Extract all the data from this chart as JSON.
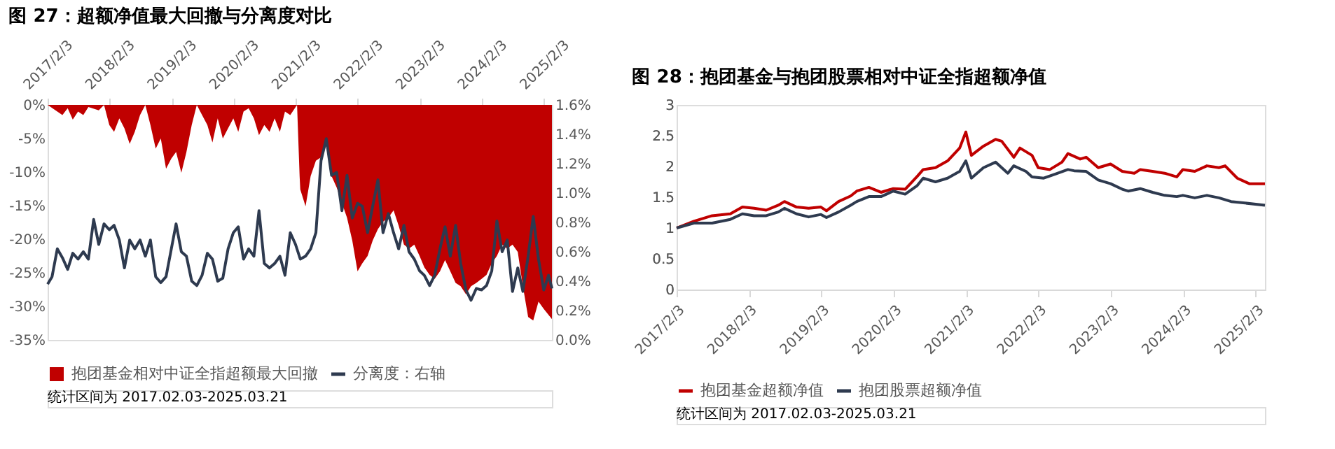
{
  "chart_data": [
    {
      "type": "area",
      "title": "图 27：超额净值最大回撤与分离度对比",
      "xlim": [
        "2017-02-03",
        "2025-03-21"
      ],
      "xticks": [
        {
          "value": "2017-02-03",
          "label": "2017/2/3"
        },
        {
          "value": "2018-02-03",
          "label": "2018/2/3"
        },
        {
          "value": "2019-02-03",
          "label": "2019/2/3"
        },
        {
          "value": "2020-02-03",
          "label": "2020/2/3"
        },
        {
          "value": "2021-02-03",
          "label": "2021/2/3"
        },
        {
          "value": "2022-02-03",
          "label": "2022/2/3"
        },
        {
          "value": "2023-02-03",
          "label": "2023/2/3"
        },
        {
          "value": "2024-02-03",
          "label": "2024/2/3"
        },
        {
          "value": "2025-02-03",
          "label": "2025/2/3"
        }
      ],
      "ylim": [
        -35,
        0
      ],
      "yticks": [
        {
          "value": -35,
          "label": "-35%"
        },
        {
          "value": -30,
          "label": "-30%"
        },
        {
          "value": -25,
          "label": "-25%"
        },
        {
          "value": -20,
          "label": "-20%"
        },
        {
          "value": -15,
          "label": "-15%"
        },
        {
          "value": -10,
          "label": "-10%"
        },
        {
          "value": -5,
          "label": "-5%"
        },
        {
          "value": 0,
          "label": "0%"
        }
      ],
      "y2lim": [
        0,
        1.6
      ],
      "y2ticks": [
        {
          "value": 0,
          "label": "0.0%"
        },
        {
          "value": 0.2,
          "label": "0.2%"
        },
        {
          "value": 0.4,
          "label": "0.4%"
        },
        {
          "value": 0.6,
          "label": "0.6%"
        },
        {
          "value": 0.8,
          "label": "0.8%"
        },
        {
          "value": 1.0,
          "label": "1.0%"
        },
        {
          "value": 1.2,
          "label": "1.2%"
        },
        {
          "value": 1.4,
          "label": "1.4%"
        },
        {
          "value": 1.6,
          "label": "1.6%"
        }
      ],
      "legend": "bottom",
      "series": [
        {
          "name": "抱团基金相对中证全指超额最大回撤",
          "type": "area",
          "color": "#c00000",
          "x": [
            "2017-02-03",
            "2017-04",
            "2017-05",
            "2017-06",
            "2017-07",
            "2017-08",
            "2017-09",
            "2017-10",
            "2017-12",
            "2018-01",
            "2018-02",
            "2018-03",
            "2018-04",
            "2018-05",
            "2018-06",
            "2018-07",
            "2018-08",
            "2018-09",
            "2018-10",
            "2018-11",
            "2018-12",
            "2019-01",
            "2019-02",
            "2019-03",
            "2019-04",
            "2019-05",
            "2019-06",
            "2019-07",
            "2019-08",
            "2019-09",
            "2019-10",
            "2019-11",
            "2019-12",
            "2020-01",
            "2020-02",
            "2020-03",
            "2020-04",
            "2020-05",
            "2020-06",
            "2020-07",
            "2020-08",
            "2020-09",
            "2020-10",
            "2020-11",
            "2020-12",
            "2021-01",
            "2021-02-10",
            "2021-02-25",
            "2021-03",
            "2021-04",
            "2021-05",
            "2021-06",
            "2021-07",
            "2021-08",
            "2021-09",
            "2021-10",
            "2021-11",
            "2021-12",
            "2022-01",
            "2022-02",
            "2022-03",
            "2022-04",
            "2022-05",
            "2022-06",
            "2022-07",
            "2022-08",
            "2022-09",
            "2022-10",
            "2022-11",
            "2022-12",
            "2023-01",
            "2023-02",
            "2023-03",
            "2023-04",
            "2023-05",
            "2023-06",
            "2023-07",
            "2023-08",
            "2023-09",
            "2023-10",
            "2023-11",
            "2023-12",
            "2024-01",
            "2024-02",
            "2024-03",
            "2024-04",
            "2024-05",
            "2024-06",
            "2024-07",
            "2024-08",
            "2024-09",
            "2024-10",
            "2024-11",
            "2024-12",
            "2025-01",
            "2025-02",
            "2025-03-21"
          ],
          "values": [
            0,
            -1,
            -1.5,
            -0.5,
            -2.2,
            -1,
            -1.5,
            -0.3,
            -0.8,
            0,
            -3,
            -4,
            -2,
            -3.5,
            -5.8,
            -4,
            -1.5,
            0,
            -3,
            -6.5,
            -5,
            -9.5,
            -8,
            -7,
            -10.1,
            -7,
            -3,
            0,
            -1.5,
            -3,
            -5.6,
            -2,
            -5,
            -3.5,
            -2,
            -4,
            -1,
            -0.5,
            -2,
            -4.5,
            -3,
            -4,
            -2,
            -4,
            -1,
            -1.5,
            0,
            -10.6,
            -12.6,
            -15.1,
            -10.6,
            -8.3,
            -7.8,
            -6.1,
            -10.6,
            -12.3,
            -14.6,
            -16.8,
            -20.2,
            -24.8,
            -23.6,
            -22.5,
            -20.2,
            -18.5,
            -17.4,
            -16.8,
            -15.7,
            -18.0,
            -20.8,
            -21.4,
            -20.8,
            -22.5,
            -24.2,
            -25.3,
            -25.9,
            -24.8,
            -23.1,
            -24.8,
            -26.5,
            -27.0,
            -28.2,
            -27.0,
            -26.5,
            -25.9,
            -25.3,
            -23.6,
            -22.5,
            -20.8,
            -21.4,
            -20.8,
            -21.9,
            -27.0,
            -31.6,
            -32.1,
            -29.3,
            -30.4,
            -31.9
          ]
        },
        {
          "name": "分离度：右轴",
          "type": "line",
          "axis": "y2",
          "color": "#2e3a4f",
          "x": [
            "2017-02-03",
            "2017-03",
            "2017-04",
            "2017-05",
            "2017-06",
            "2017-07",
            "2017-08",
            "2017-09",
            "2017-10",
            "2017-11",
            "2017-12",
            "2018-01",
            "2018-02",
            "2018-03",
            "2018-04",
            "2018-05",
            "2018-06",
            "2018-07",
            "2018-08",
            "2018-09",
            "2018-10",
            "2018-11",
            "2018-12",
            "2019-01",
            "2019-02",
            "2019-03",
            "2019-04",
            "2019-05",
            "2019-06",
            "2019-07",
            "2019-08",
            "2019-09",
            "2019-10",
            "2019-11",
            "2019-12",
            "2020-01",
            "2020-02",
            "2020-03",
            "2020-04",
            "2020-05",
            "2020-06",
            "2020-07",
            "2020-08",
            "2020-09",
            "2020-10",
            "2020-11",
            "2020-12",
            "2021-01",
            "2021-02",
            "2021-03",
            "2021-04",
            "2021-05",
            "2021-06",
            "2021-07",
            "2021-08",
            "2021-09",
            "2021-10",
            "2021-11",
            "2021-12",
            "2022-01",
            "2022-02",
            "2022-03",
            "2022-04",
            "2022-05",
            "2022-06",
            "2022-07",
            "2022-08",
            "2022-09",
            "2022-10",
            "2022-11",
            "2022-12",
            "2023-01",
            "2023-02",
            "2023-03",
            "2023-04",
            "2023-05",
            "2023-06",
            "2023-07",
            "2023-08",
            "2023-09",
            "2023-10",
            "2023-11",
            "2023-12",
            "2024-01",
            "2024-02",
            "2024-03",
            "2024-04",
            "2024-05",
            "2024-06",
            "2024-07",
            "2024-08",
            "2024-09",
            "2024-10",
            "2024-11",
            "2024-12",
            "2025-01",
            "2025-02",
            "2025-03",
            "2025-03-21"
          ],
          "values": [
            0.38,
            0.43,
            0.62,
            0.56,
            0.48,
            0.59,
            0.55,
            0.6,
            0.55,
            0.82,
            0.65,
            0.79,
            0.75,
            0.78,
            0.68,
            0.49,
            0.68,
            0.62,
            0.68,
            0.57,
            0.68,
            0.43,
            0.39,
            0.43,
            0.62,
            0.79,
            0.6,
            0.57,
            0.4,
            0.37,
            0.44,
            0.59,
            0.55,
            0.4,
            0.42,
            0.62,
            0.73,
            0.77,
            0.55,
            0.62,
            0.57,
            0.88,
            0.52,
            0.49,
            0.52,
            0.57,
            0.44,
            0.73,
            0.65,
            0.55,
            0.57,
            0.62,
            0.73,
            1.22,
            1.37,
            1.12,
            1.14,
            0.88,
            1.12,
            0.83,
            0.93,
            0.91,
            0.73,
            0.91,
            1.09,
            0.73,
            0.86,
            0.73,
            0.62,
            0.78,
            0.6,
            0.55,
            0.47,
            0.44,
            0.37,
            0.44,
            0.62,
            0.77,
            0.57,
            0.78,
            0.52,
            0.34,
            0.27,
            0.35,
            0.34,
            0.37,
            0.47,
            0.81,
            0.6,
            0.68,
            0.33,
            0.49,
            0.33,
            0.57,
            0.84,
            0.55,
            0.34,
            0.44,
            0.35
          ]
        }
      ],
      "annotations": [
        "统计区间为 2017.02.03-2025.03.21"
      ]
    },
    {
      "type": "line",
      "title": "图 28：抱团基金与抱团股票相对中证全指超额净值",
      "xlim": [
        "2017-02-03",
        "2025-03-21"
      ],
      "xticks": [
        {
          "value": "2017-02-03",
          "label": "2017/2/3"
        },
        {
          "value": "2018-02-03",
          "label": "2018/2/3"
        },
        {
          "value": "2019-02-03",
          "label": "2019/2/3"
        },
        {
          "value": "2020-02-03",
          "label": "2020/2/3"
        },
        {
          "value": "2021-02-03",
          "label": "2021/2/3"
        },
        {
          "value": "2022-02-03",
          "label": "2022/2/3"
        },
        {
          "value": "2023-02-03",
          "label": "2023/2/3"
        },
        {
          "value": "2024-02-03",
          "label": "2024/2/3"
        },
        {
          "value": "2025-02-03",
          "label": "2025/2/3"
        }
      ],
      "ylim": [
        0,
        3
      ],
      "yticks": [
        0,
        0.5,
        1,
        1.5,
        2,
        2.5,
        3
      ],
      "legend": "bottom",
      "series": [
        {
          "name": "抱团基金超额净值",
          "color": "#c00000",
          "x": [
            "2017-02-03",
            "2017-05",
            "2017-08",
            "2017-11",
            "2018-01",
            "2018-03",
            "2018-05",
            "2018-07",
            "2018-08",
            "2018-10",
            "2018-12",
            "2019-02",
            "2019-03",
            "2019-05",
            "2019-07",
            "2019-08",
            "2019-10",
            "2019-12",
            "2020-02",
            "2020-04",
            "2020-06",
            "2020-07",
            "2020-09",
            "2020-11",
            "2021-01",
            "2021-02",
            "2021-03",
            "2021-05",
            "2021-07",
            "2021-08",
            "2021-10",
            "2021-11",
            "2022-01",
            "2022-02",
            "2022-04",
            "2022-06",
            "2022-07",
            "2022-09",
            "2022-10",
            "2022-12",
            "2023-02",
            "2023-04",
            "2023-06",
            "2023-07",
            "2023-09",
            "2023-11",
            "2024-01",
            "2024-02",
            "2024-04",
            "2024-06",
            "2024-08",
            "2024-09",
            "2024-11",
            "2025-01",
            "2025-03-21"
          ],
          "values": [
            1.0,
            1.11,
            1.2,
            1.23,
            1.34,
            1.32,
            1.29,
            1.37,
            1.43,
            1.34,
            1.32,
            1.34,
            1.28,
            1.43,
            1.52,
            1.6,
            1.66,
            1.58,
            1.64,
            1.63,
            1.84,
            1.95,
            1.98,
            2.09,
            2.3,
            2.56,
            2.18,
            2.33,
            2.44,
            2.41,
            2.15,
            2.3,
            2.18,
            1.98,
            1.95,
            2.07,
            2.21,
            2.12,
            2.15,
            1.98,
            2.04,
            1.92,
            1.89,
            1.95,
            1.92,
            1.89,
            1.83,
            1.95,
            1.92,
            2.01,
            1.98,
            2.01,
            1.81,
            1.72,
            1.72
          ]
        },
        {
          "name": "抱团股票超额净值",
          "color": "#2e3a4f",
          "x": [
            "2017-02-03",
            "2017-05",
            "2017-08",
            "2017-11",
            "2018-01",
            "2018-03",
            "2018-05",
            "2018-07",
            "2018-08",
            "2018-10",
            "2018-12",
            "2019-02",
            "2019-03",
            "2019-05",
            "2019-07",
            "2019-08",
            "2019-10",
            "2019-12",
            "2020-02",
            "2020-04",
            "2020-06",
            "2020-07",
            "2020-09",
            "2020-11",
            "2021-01",
            "2021-02",
            "2021-03",
            "2021-05",
            "2021-07",
            "2021-09",
            "2021-10",
            "2021-12",
            "2022-01",
            "2022-03",
            "2022-05",
            "2022-07",
            "2022-08",
            "2022-10",
            "2022-12",
            "2023-02",
            "2023-04",
            "2023-05",
            "2023-07",
            "2023-09",
            "2023-11",
            "2024-01",
            "2024-02",
            "2024-04",
            "2024-06",
            "2024-08",
            "2024-10",
            "2025-03-21"
          ],
          "values": [
            1.0,
            1.08,
            1.08,
            1.14,
            1.23,
            1.2,
            1.2,
            1.26,
            1.32,
            1.23,
            1.18,
            1.22,
            1.17,
            1.26,
            1.37,
            1.43,
            1.51,
            1.51,
            1.6,
            1.55,
            1.69,
            1.81,
            1.75,
            1.81,
            1.92,
            2.09,
            1.81,
            1.98,
            2.07,
            1.89,
            2.01,
            1.92,
            1.83,
            1.81,
            1.88,
            1.95,
            1.93,
            1.92,
            1.78,
            1.72,
            1.63,
            1.6,
            1.64,
            1.58,
            1.53,
            1.51,
            1.53,
            1.49,
            1.53,
            1.49,
            1.43,
            1.37
          ]
        }
      ],
      "annotations": [
        "统计区间为 2017.02.03-2025.03.21"
      ]
    }
  ]
}
